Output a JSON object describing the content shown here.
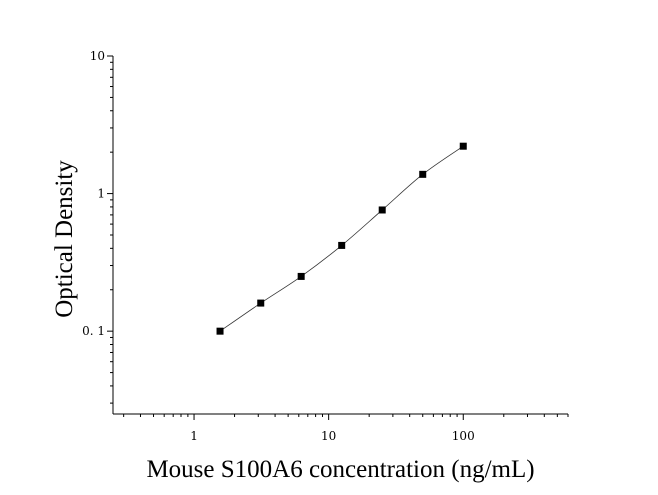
{
  "chart_data": {
    "type": "scatter",
    "title": "",
    "xlabel": "Mouse S100A6 concentration (ng/mL)",
    "ylabel": "Optical Density",
    "x_scale": "log",
    "y_scale": "log",
    "xlim": [
      0.25,
      600
    ],
    "ylim": [
      0.025,
      10
    ],
    "x_ticks": [
      {
        "value": 1,
        "label": "1"
      },
      {
        "value": 10,
        "label": "10"
      },
      {
        "value": 100,
        "label": "100"
      }
    ],
    "y_ticks": [
      {
        "value": 0.1,
        "label": "0. 1"
      },
      {
        "value": 1,
        "label": "1"
      },
      {
        "value": 10,
        "label": "10"
      }
    ],
    "grid": false,
    "legend": "none",
    "series": [
      {
        "x": [
          1.56,
          3.13,
          6.25,
          12.5,
          25,
          50,
          100
        ],
        "y": [
          0.1,
          0.16,
          0.25,
          0.42,
          0.76,
          1.38,
          2.21
        ],
        "marker": "square",
        "color": "#000000",
        "fit_curve": true
      }
    ]
  }
}
